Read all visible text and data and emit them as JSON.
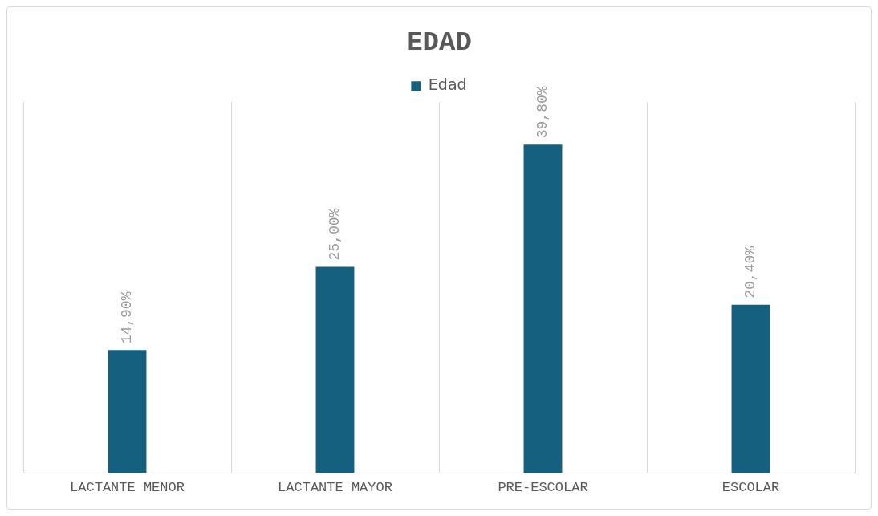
{
  "chart_data": {
    "type": "bar",
    "title": "EDAD",
    "categories": [
      "LACTANTE MENOR",
      "LACTANTE MAYOR",
      "PRE-ESCOLAR",
      "ESCOLAR"
    ],
    "series": [
      {
        "name": "Edad",
        "color": "#15607f",
        "values": [
          14.9,
          25.0,
          39.8,
          20.4
        ],
        "value_labels": [
          "14,90%",
          "25,00%",
          "39,80%",
          "20,40%"
        ]
      }
    ],
    "grid": "x",
    "legend": "top"
  }
}
